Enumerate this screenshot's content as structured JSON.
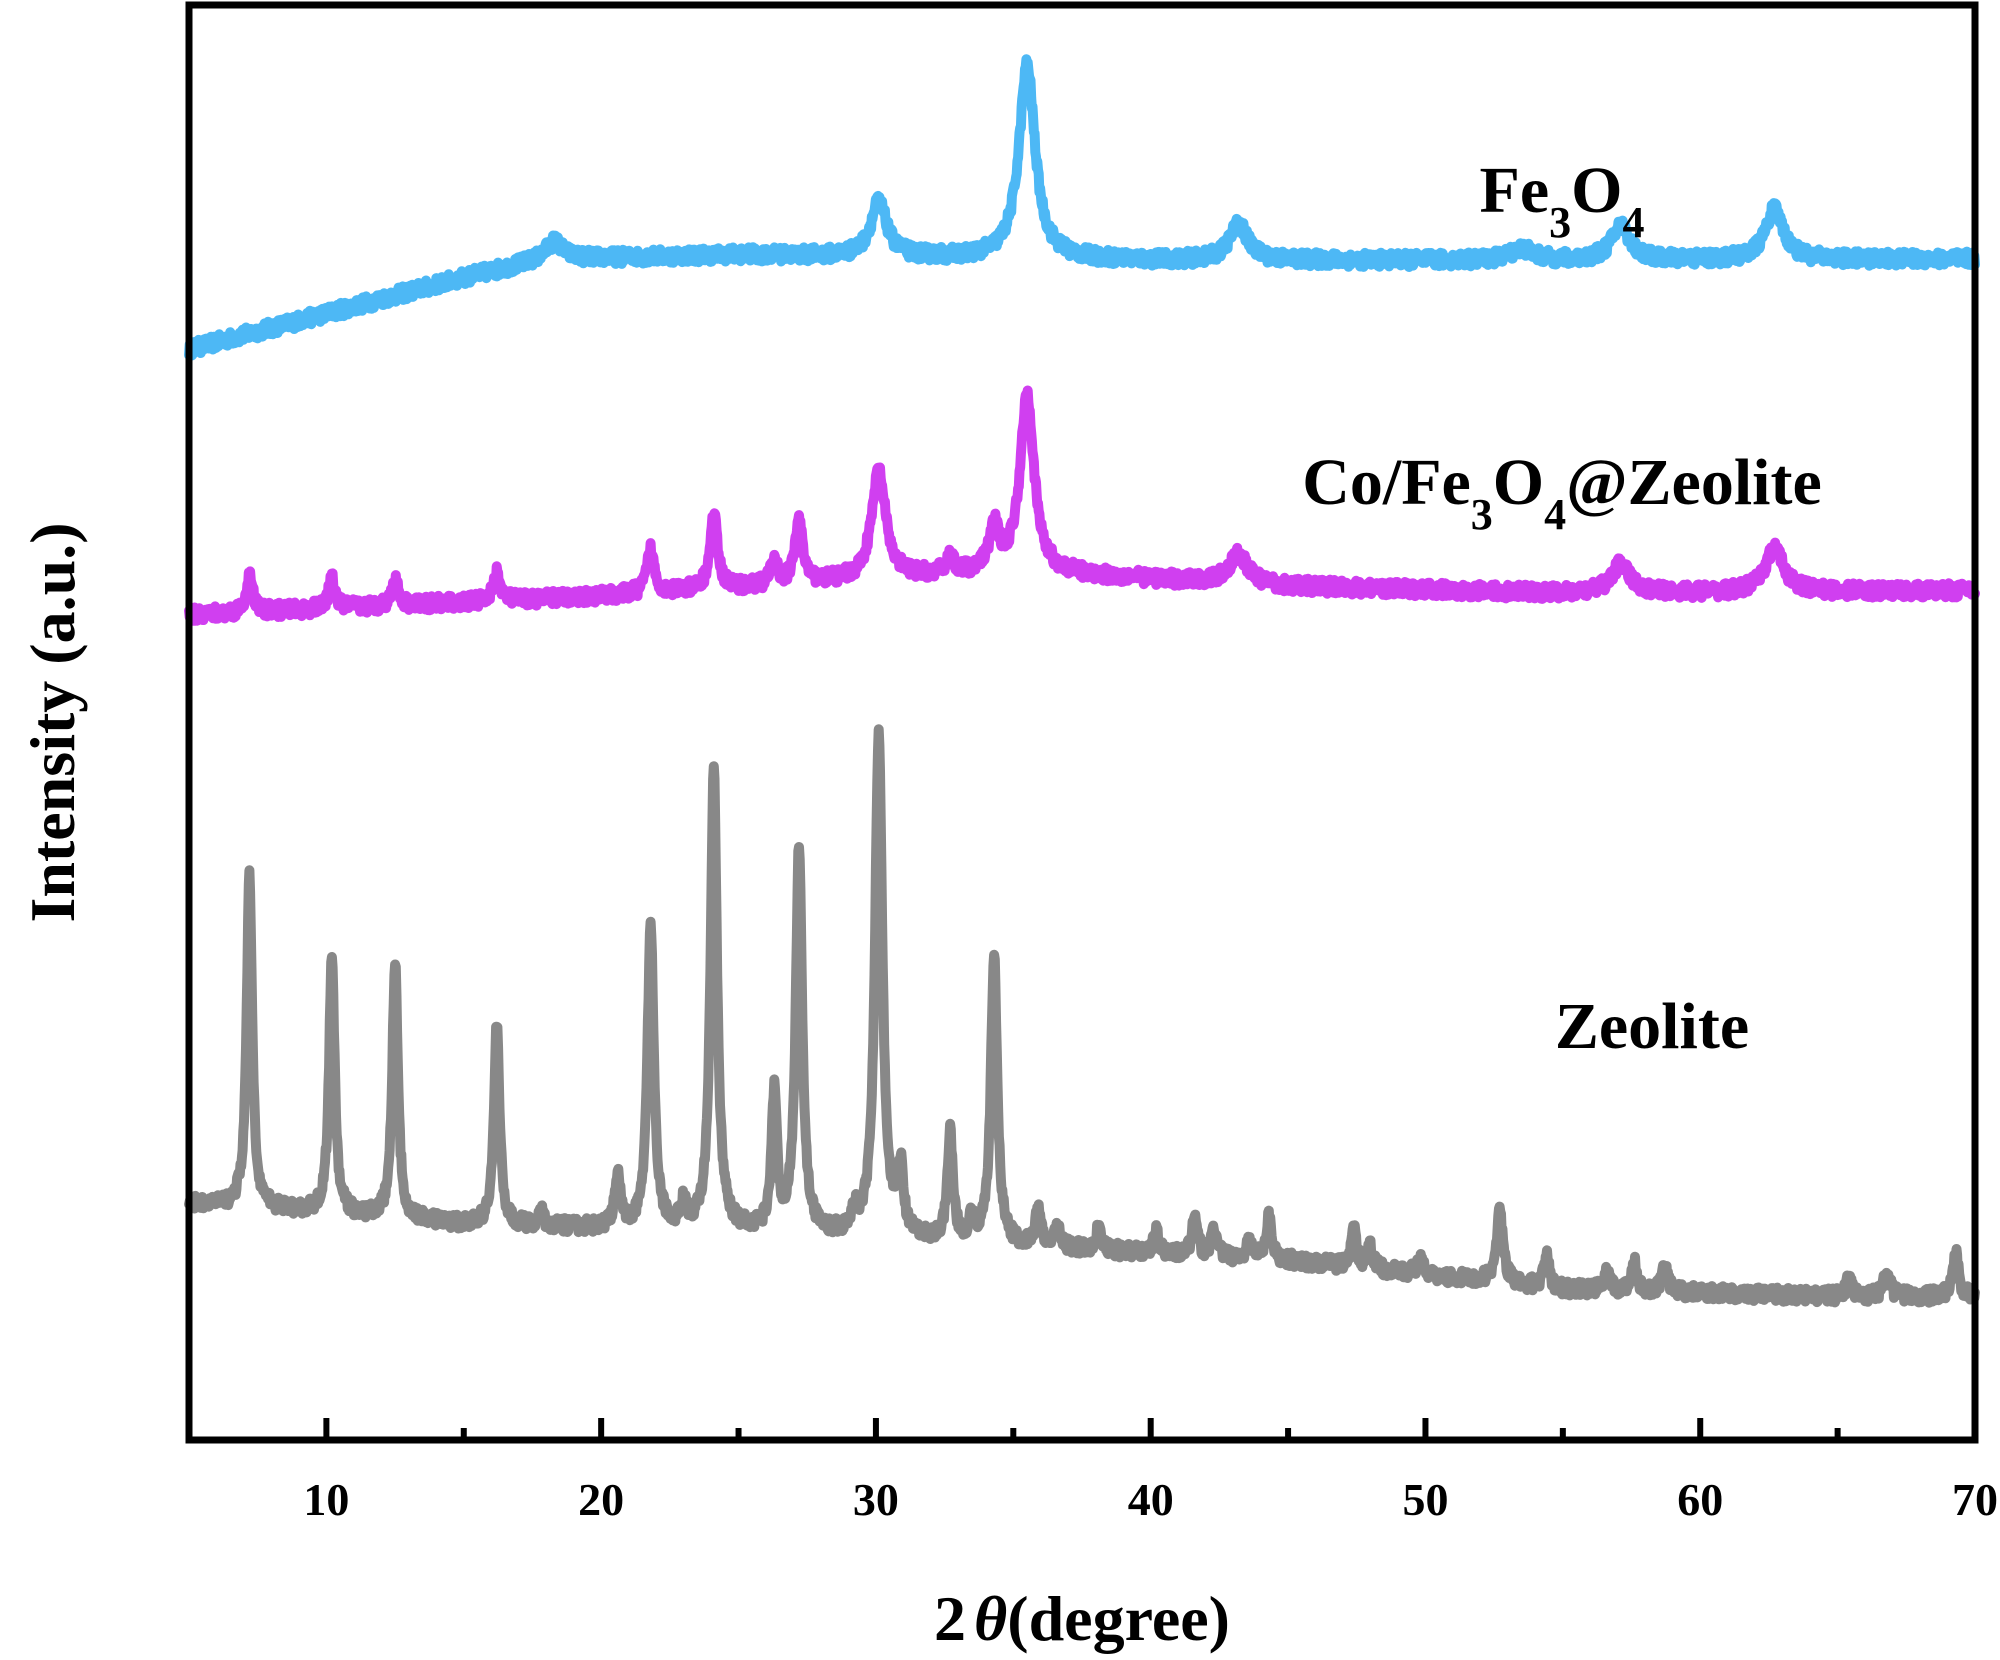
{
  "chart_data": {
    "type": "line",
    "title": "",
    "xlabel": {
      "prefix": "2",
      "symbol": "θ",
      "suffix": "(degree)"
    },
    "ylabel": "Intensity (a.u.)",
    "xlim": [
      5,
      70
    ],
    "ylim": [
      0,
      100
    ],
    "x_major_ticks": [
      10,
      20,
      30,
      40,
      50,
      60,
      70
    ],
    "x_minor_ticks": [
      15,
      25,
      35,
      45,
      55,
      65
    ],
    "x_tick_labels": [
      "10",
      "20",
      "30",
      "40",
      "50",
      "60",
      "70"
    ],
    "y_tick_labels": [],
    "grid": false,
    "legend": "none",
    "noise_amplitude": 0.5,
    "series": [
      {
        "name": "Fe3O4",
        "label_parts": [
          [
            "Fe",
            "normal"
          ],
          [
            "3",
            "sub"
          ],
          [
            "O",
            "normal"
          ],
          [
            "4",
            "sub"
          ]
        ],
        "color": "#4db8f5",
        "baseline": [
          [
            5,
            76
          ],
          [
            10,
            78.5
          ],
          [
            15,
            81
          ],
          [
            18,
            82.3
          ],
          [
            25,
            82.6
          ],
          [
            40,
            82.2
          ],
          [
            55,
            82.2
          ],
          [
            70,
            82.3
          ]
        ],
        "peaks": [
          [
            18.3,
            1.2,
            0.35
          ],
          [
            30.1,
            3.8,
            0.35
          ],
          [
            35.5,
            13.5,
            0.35
          ],
          [
            43.2,
            2.5,
            0.4
          ],
          [
            53.5,
            0.8,
            0.5
          ],
          [
            57.1,
            2.4,
            0.4
          ],
          [
            62.7,
            3.5,
            0.4
          ]
        ]
      },
      {
        "name": "Co/Fe3O4@Zeolite",
        "label_parts": [
          [
            "Co/Fe",
            "normal"
          ],
          [
            "3",
            "sub"
          ],
          [
            "O",
            "normal"
          ],
          [
            "4",
            "sub"
          ],
          [
            "@Zeolite",
            "normal"
          ]
        ],
        "color": "#d03ff0",
        "baseline": [
          [
            5,
            57.5
          ],
          [
            20,
            58.8
          ],
          [
            30,
            60
          ],
          [
            35,
            60.5
          ],
          [
            45,
            59.5
          ],
          [
            55,
            59
          ],
          [
            70,
            59.2
          ]
        ],
        "peaks": [
          [
            7.2,
            2.5,
            0.14
          ],
          [
            10.2,
            2,
            0.14
          ],
          [
            12.5,
            1.8,
            0.14
          ],
          [
            16.2,
            2,
            0.14
          ],
          [
            21.8,
            3,
            0.16
          ],
          [
            24.1,
            5.2,
            0.16
          ],
          [
            26.3,
            1.5,
            0.16
          ],
          [
            27.2,
            4.5,
            0.16
          ],
          [
            30.1,
            7.5,
            0.3
          ],
          [
            32.7,
            1.2,
            0.16
          ],
          [
            34.3,
            3,
            0.2
          ],
          [
            35.5,
            12.5,
            0.3
          ],
          [
            43.2,
            2,
            0.4
          ],
          [
            57.1,
            2,
            0.4
          ],
          [
            62.7,
            3,
            0.4
          ]
        ]
      },
      {
        "name": "Zeolite",
        "label_parts": [
          [
            "Zeolite",
            "normal"
          ]
        ],
        "color": "#888888",
        "baseline": [
          [
            5,
            16.5
          ],
          [
            15,
            15
          ],
          [
            25,
            14.5
          ],
          [
            35,
            13.5
          ],
          [
            45,
            12.5
          ],
          [
            55,
            10.5
          ],
          [
            65,
            10
          ],
          [
            70,
            10
          ]
        ],
        "peaks": [
          [
            7.2,
            23,
            0.12
          ],
          [
            10.2,
            18,
            0.12
          ],
          [
            12.5,
            18,
            0.12
          ],
          [
            16.2,
            14,
            0.12
          ],
          [
            17.8,
            1,
            0.12
          ],
          [
            20.6,
            3.5,
            0.12
          ],
          [
            21.8,
            21,
            0.14
          ],
          [
            23.0,
            1.5,
            0.12
          ],
          [
            24.1,
            32,
            0.14
          ],
          [
            26.3,
            9.5,
            0.12
          ],
          [
            27.2,
            27,
            0.14
          ],
          [
            29.2,
            1.5,
            0.12
          ],
          [
            30.1,
            35,
            0.16
          ],
          [
            30.9,
            4.5,
            0.12
          ],
          [
            32.7,
            7.5,
            0.12
          ],
          [
            33.5,
            1.5,
            0.12
          ],
          [
            34.3,
            20,
            0.14
          ],
          [
            35.9,
            2.5,
            0.12
          ],
          [
            36.6,
            1.5,
            0.12
          ],
          [
            38.1,
            1.5,
            0.12
          ],
          [
            40.2,
            1.5,
            0.12
          ],
          [
            41.6,
            2.5,
            0.12
          ],
          [
            42.3,
            1.8,
            0.12
          ],
          [
            43.6,
            1.2,
            0.12
          ],
          [
            44.3,
            3,
            0.12
          ],
          [
            47.4,
            2.5,
            0.12
          ],
          [
            48.0,
            1.5,
            0.12
          ],
          [
            49.8,
            1.2,
            0.12
          ],
          [
            52.7,
            5,
            0.14
          ],
          [
            54.4,
            2.2,
            0.12
          ],
          [
            56.6,
            1.2,
            0.12
          ],
          [
            57.6,
            2,
            0.12
          ],
          [
            58.7,
            2,
            0.12
          ],
          [
            65.4,
            1.2,
            0.12
          ],
          [
            66.8,
            2,
            0.12
          ],
          [
            69.3,
            3,
            0.12
          ]
        ]
      }
    ]
  }
}
